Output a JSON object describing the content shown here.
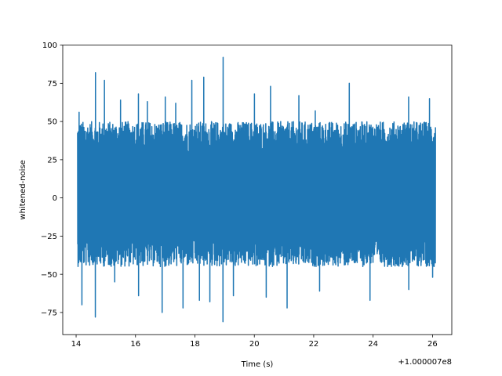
{
  "chart_data": {
    "type": "line",
    "xlabel": "Time (s)",
    "ylabel": "whitened-noise",
    "x_offset_label": "+1.000007e8",
    "xlim": [
      13.55,
      26.65
    ],
    "ylim": [
      -89.5,
      100.0
    ],
    "x_ticks": [
      {
        "value": 14,
        "label": "14"
      },
      {
        "value": 16,
        "label": "16"
      },
      {
        "value": 18,
        "label": "18"
      },
      {
        "value": 20,
        "label": "20"
      },
      {
        "value": 22,
        "label": "22"
      },
      {
        "value": 24,
        "label": "24"
      },
      {
        "value": 26,
        "label": "26"
      }
    ],
    "y_ticks": [
      {
        "value": 100,
        "label": "100"
      },
      {
        "value": 75,
        "label": "75"
      },
      {
        "value": 50,
        "label": "50"
      },
      {
        "value": 25,
        "label": "25"
      },
      {
        "value": 0,
        "label": "0"
      },
      {
        "value": -25,
        "label": "−25"
      },
      {
        "value": -50,
        "label": "−50"
      },
      {
        "value": -75,
        "label": "−75"
      }
    ],
    "grid": false,
    "series": [
      {
        "color": "#1f77b4",
        "x_start": 14.05,
        "x_end": 26.1,
        "typical_range": [
          -45,
          50
        ],
        "peaks": [
          {
            "x": 14.1,
            "y": 56
          },
          {
            "x": 14.65,
            "y": 82
          },
          {
            "x": 14.95,
            "y": 77
          },
          {
            "x": 15.5,
            "y": 64
          },
          {
            "x": 16.1,
            "y": 68
          },
          {
            "x": 16.4,
            "y": 63
          },
          {
            "x": 17.0,
            "y": 66
          },
          {
            "x": 17.35,
            "y": 62
          },
          {
            "x": 17.9,
            "y": 77
          },
          {
            "x": 18.3,
            "y": 79
          },
          {
            "x": 18.95,
            "y": 92
          },
          {
            "x": 20.0,
            "y": 68
          },
          {
            "x": 20.55,
            "y": 73
          },
          {
            "x": 21.5,
            "y": 67
          },
          {
            "x": 22.05,
            "y": 57
          },
          {
            "x": 23.2,
            "y": 75
          },
          {
            "x": 25.2,
            "y": 66
          },
          {
            "x": 25.9,
            "y": 65
          }
        ],
        "troughs": [
          {
            "x": 14.2,
            "y": -70
          },
          {
            "x": 14.65,
            "y": -78
          },
          {
            "x": 15.3,
            "y": -55
          },
          {
            "x": 16.1,
            "y": -64
          },
          {
            "x": 16.9,
            "y": -75
          },
          {
            "x": 17.6,
            "y": -72
          },
          {
            "x": 18.15,
            "y": -67
          },
          {
            "x": 18.5,
            "y": -68
          },
          {
            "x": 18.95,
            "y": -81
          },
          {
            "x": 19.3,
            "y": -64
          },
          {
            "x": 20.4,
            "y": -65
          },
          {
            "x": 21.1,
            "y": -72
          },
          {
            "x": 22.2,
            "y": -61
          },
          {
            "x": 23.9,
            "y": -67
          },
          {
            "x": 25.2,
            "y": -60
          },
          {
            "x": 26.0,
            "y": -52
          }
        ]
      }
    ]
  }
}
